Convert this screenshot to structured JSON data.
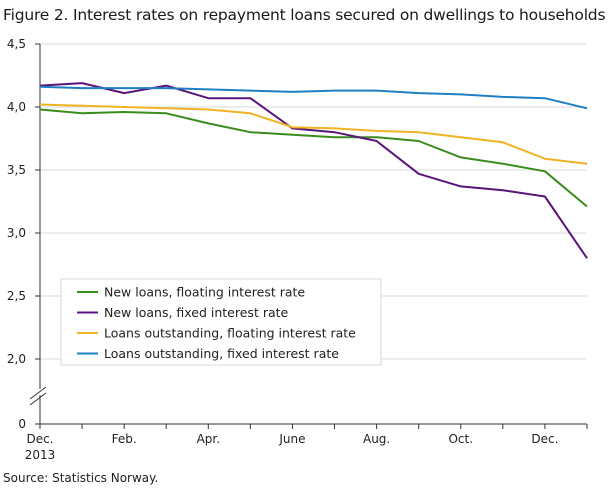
{
  "chart_data": {
    "type": "line",
    "title": "Figure 2. Interest rates on repayment loans secured on dwellings to households",
    "source": "Source: Statistics Norway.",
    "xlabel": "",
    "ylabel": "",
    "ylim": [
      0,
      4.5
    ],
    "axis_break": true,
    "y_ticks": [
      {
        "value": 0,
        "label": "0"
      },
      {
        "value": 2.0,
        "label": "2,0"
      },
      {
        "value": 2.5,
        "label": "2,5"
      },
      {
        "value": 3.0,
        "label": "3,0"
      },
      {
        "value": 3.5,
        "label": "3,5"
      },
      {
        "value": 4.0,
        "label": "4,0"
      },
      {
        "value": 4.5,
        "label": "4,5"
      }
    ],
    "x": [
      "2013-12",
      "2014-01",
      "2014-02",
      "2014-03",
      "2014-04",
      "2014-05",
      "2014-06",
      "2014-07",
      "2014-08",
      "2014-09",
      "2014-10",
      "2014-11",
      "2014-12",
      "2015-01"
    ],
    "x_ticks": [
      {
        "value": "2013-12",
        "label": "Dec.",
        "sublabel": "2013"
      },
      {
        "value": "2014-02",
        "label": "Feb.",
        "sublabel": ""
      },
      {
        "value": "2014-04",
        "label": "Apr.",
        "sublabel": ""
      },
      {
        "value": "2014-06",
        "label": "June",
        "sublabel": ""
      },
      {
        "value": "2014-08",
        "label": "Aug.",
        "sublabel": ""
      },
      {
        "value": "2014-10",
        "label": "Oct.",
        "sublabel": ""
      },
      {
        "value": "2014-12",
        "label": "Dec.",
        "sublabel": ""
      }
    ],
    "grid": true,
    "legend_position": "lower-left",
    "series": [
      {
        "name": "New loans, floating interest rate",
        "color": "#3a8c1e",
        "values": [
          3.98,
          3.95,
          3.96,
          3.95,
          3.87,
          3.8,
          3.78,
          3.76,
          3.76,
          3.73,
          3.6,
          3.55,
          3.49,
          3.21
        ]
      },
      {
        "name": "New loans, fixed interest rate",
        "color": "#5b157a",
        "values": [
          4.17,
          4.19,
          4.11,
          4.17,
          4.07,
          4.07,
          3.83,
          3.8,
          3.73,
          3.47,
          3.37,
          3.34,
          3.29,
          2.8
        ]
      },
      {
        "name": "Loans outstanding, floating interest rate",
        "color": "#f0b323",
        "values": [
          4.02,
          4.01,
          4.0,
          3.99,
          3.98,
          3.95,
          3.84,
          3.83,
          3.81,
          3.8,
          3.76,
          3.72,
          3.59,
          3.55
        ]
      },
      {
        "name": "Loans outstanding, fixed interest rate",
        "color": "#1f7fc4",
        "values": [
          4.16,
          4.15,
          4.15,
          4.15,
          4.14,
          4.13,
          4.12,
          4.13,
          4.13,
          4.11,
          4.1,
          4.08,
          4.07,
          3.99
        ]
      }
    ]
  }
}
